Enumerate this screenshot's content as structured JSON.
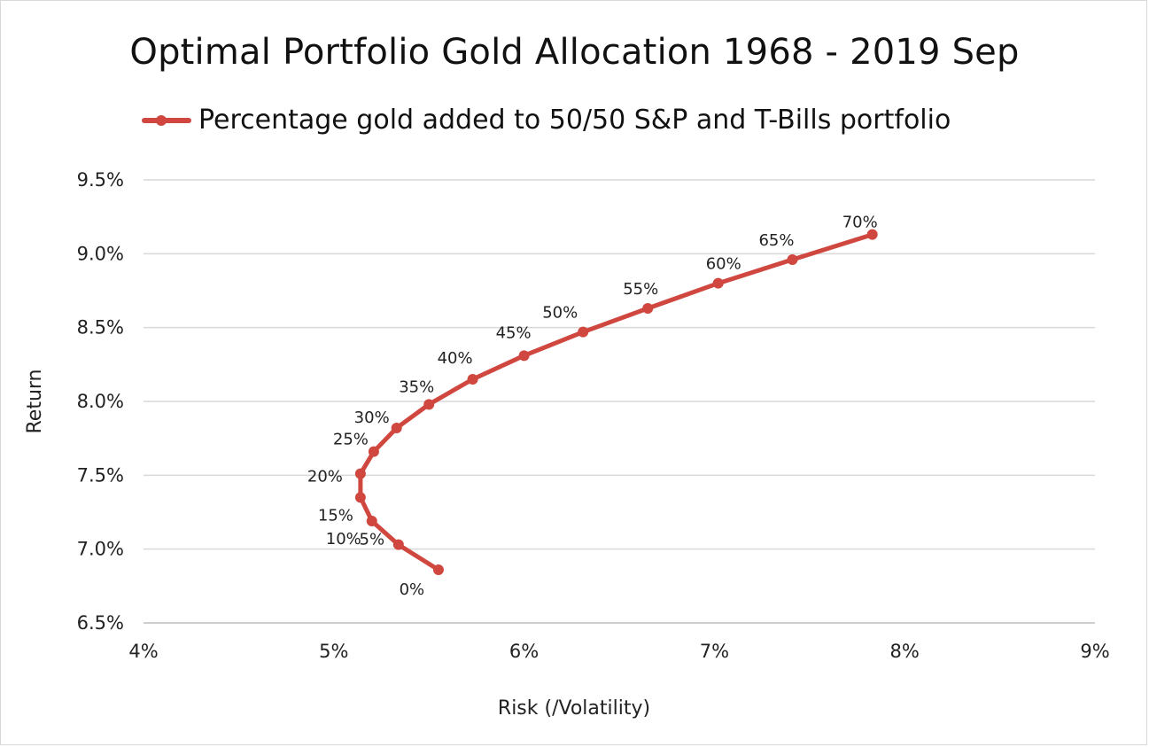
{
  "chart_data": {
    "type": "line",
    "title": "Optimal Portfolio Gold Allocation 1968 - 2019 Sep",
    "xlabel": "Risk (/Volatility)",
    "ylabel": "Return",
    "xlim": [
      4,
      9
    ],
    "ylim": [
      6.5,
      9.5
    ],
    "x_ticks": [
      "4%",
      "5%",
      "6%",
      "7%",
      "8%",
      "9%"
    ],
    "y_ticks": [
      "6.5%",
      "7.0%",
      "7.5%",
      "8.0%",
      "8.5%",
      "9.0%",
      "9.5%"
    ],
    "grid": true,
    "legend_position": "top",
    "series": [
      {
        "name": "Percentage gold added to 50/50 S&P and T-Bills portfolio",
        "color": "#d0473f",
        "points": [
          {
            "x": 5.55,
            "y": 6.86,
            "label": "0%"
          },
          {
            "x": 5.34,
            "y": 7.03,
            "label": "5%"
          },
          {
            "x": 5.2,
            "y": 7.19,
            "label": "10%"
          },
          {
            "x": 5.14,
            "y": 7.35,
            "label": "15%"
          },
          {
            "x": 5.14,
            "y": 7.51,
            "label": "20%"
          },
          {
            "x": 5.21,
            "y": 7.66,
            "label": "25%"
          },
          {
            "x": 5.33,
            "y": 7.82,
            "label": "30%"
          },
          {
            "x": 5.5,
            "y": 7.98,
            "label": "35%"
          },
          {
            "x": 5.73,
            "y": 8.15,
            "label": "40%"
          },
          {
            "x": 6.0,
            "y": 8.31,
            "label": "45%"
          },
          {
            "x": 6.31,
            "y": 8.47,
            "label": "50%"
          },
          {
            "x": 6.65,
            "y": 8.63,
            "label": "55%"
          },
          {
            "x": 7.02,
            "y": 8.8,
            "label": "60%"
          },
          {
            "x": 7.41,
            "y": 8.96,
            "label": "65%"
          },
          {
            "x": 7.83,
            "y": 9.13,
            "label": "70%"
          }
        ]
      }
    ]
  }
}
